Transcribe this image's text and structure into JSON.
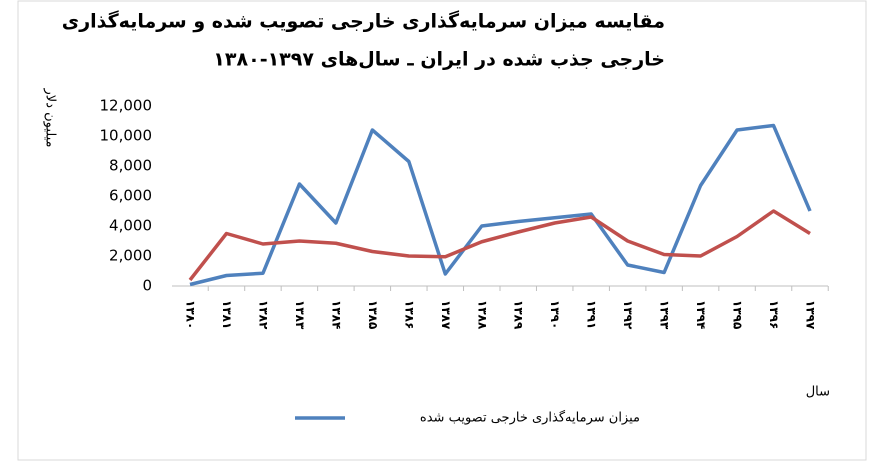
{
  "chart_data": {
    "type": "line",
    "title": [
      "مقایسه میزان سرمایه‌گذاری خارجی تصویب شده و سرمایه‌گذاری",
      "خارجی جذب شده در ایران ـ سال‌های ۱۳۹۷-۱۳۸۰"
    ],
    "y_label": "میلیون دلار",
    "x_label": "سال",
    "categories": [
      "۱۳۸۰",
      "۱۳۸۱",
      "۱۳۸۲",
      "۱۳۸۳",
      "۱۳۸۴",
      "۱۳۸۵",
      "۱۳۸۶",
      "۱۳۸۷",
      "۱۳۸۸",
      "۱۳۸۹",
      "۱۳۹۰",
      "۱۳۹۱",
      "۱۳۹۲",
      "۱۳۹۳",
      "۱۳۹۴",
      "۱۳۹۵",
      "۱۳۹۶",
      "۱۳۹۷"
    ],
    "series": [
      {
        "name": "میزان سرمایه‌گذاری خارجی تصویب شده",
        "color": "#4f81bd",
        "values": [
          100,
          700,
          850,
          6800,
          4200,
          10400,
          8300,
          800,
          4000,
          4300,
          4550,
          4800,
          1400,
          900,
          6700,
          10400,
          10700,
          5000
        ]
      },
      {
        "name": null,
        "color": "#c0504d",
        "values": [
          400,
          3500,
          2800,
          3000,
          2850,
          2300,
          2000,
          1950,
          2950,
          3600,
          4200,
          4600,
          3000,
          2100,
          2000,
          3300,
          5000,
          3500
        ]
      }
    ],
    "ylim": [
      0,
      12000
    ],
    "yticks": [
      0,
      {
        "value": 2000,
        "label": "2,000"
      },
      {
        "value": 4000,
        "label": "4,000"
      },
      {
        "value": 6000,
        "label": "6,000"
      },
      {
        "value": 8000,
        "label": "8,000"
      },
      {
        "value": 10000,
        "label": "10,000"
      },
      {
        "value": 12000,
        "label": "12,000"
      }
    ],
    "grid": false
  }
}
